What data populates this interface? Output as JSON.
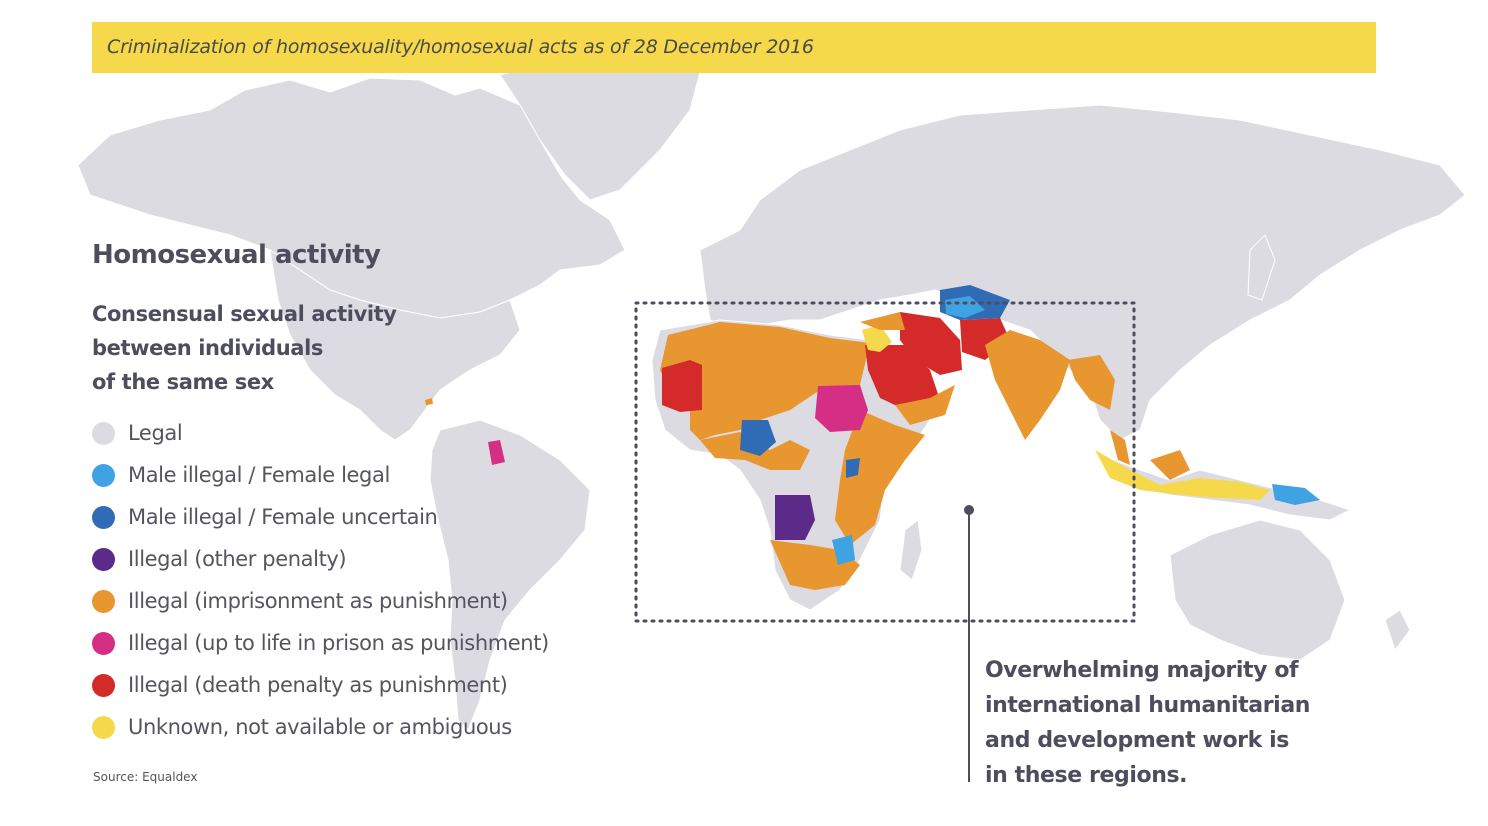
{
  "title": "Criminalization of homosexuality/homosexual acts as of 28 December 2016",
  "legend": {
    "heading": "Homosexual activity",
    "subheading_lines": [
      "Consensual sexual activity",
      "between individuals",
      "of the same sex"
    ],
    "items": [
      {
        "label": "Legal",
        "color": "#dcdbe2"
      },
      {
        "label": "Male illegal / Female legal",
        "color": "#3fa3e3"
      },
      {
        "label": "Male illegal / Female uncertain",
        "color": "#2f6cb5"
      },
      {
        "label": "Illegal (other penalty)",
        "color": "#5c2a88"
      },
      {
        "label": "Illegal (imprisonment as punishment)",
        "color": "#e8962f"
      },
      {
        "label": "Illegal (up to life in prison as punishment)",
        "color": "#d42f85"
      },
      {
        "label": "Illegal (death penalty as punishment)",
        "color": "#d42a2a"
      },
      {
        "label": "Unknown, not available or ambiguous",
        "color": "#f6d94a"
      }
    ]
  },
  "source": "Source: Equaldex",
  "callout_lines": [
    "Overwhelming majority of",
    "international humanitarian",
    "and development work is",
    "in these regions."
  ],
  "colors": {
    "banner": "#f6d94a",
    "land": "#dcdbe2",
    "ocean": "#ffffff",
    "text": "#4d4d5e",
    "highlight_box": "#4d4d5e"
  }
}
